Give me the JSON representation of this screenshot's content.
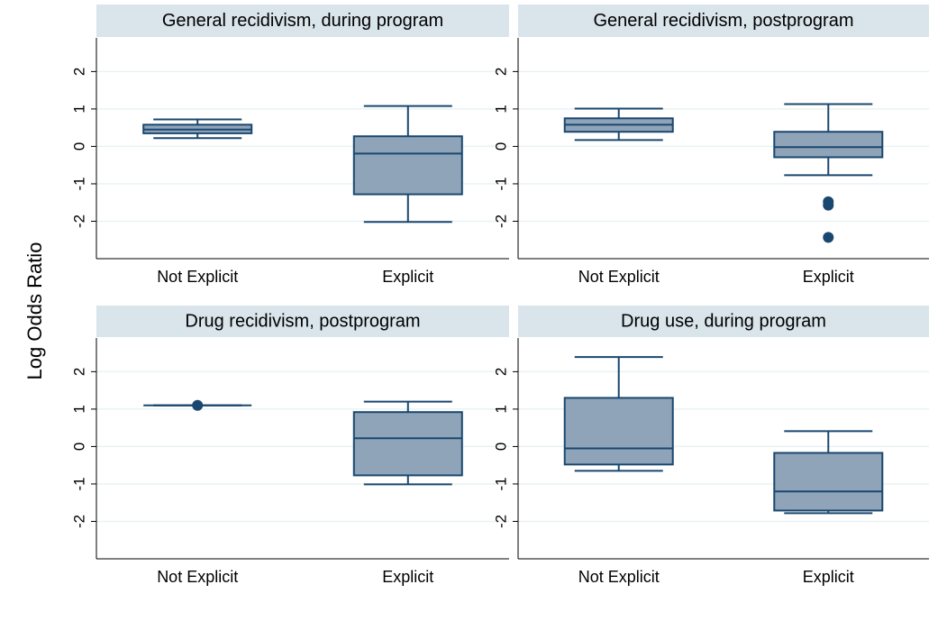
{
  "ylabel": "Log Odds Ratio",
  "chart_data": [
    {
      "type": "box",
      "title": "General recidivism, during program",
      "categories": [
        "Not Explicit",
        "Explicit"
      ],
      "boxes": [
        {
          "whislo": 0.22,
          "q1": 0.35,
          "med": 0.45,
          "q3": 0.58,
          "whishi": 0.72,
          "fliers": []
        },
        {
          "whislo": -2.02,
          "q1": -1.28,
          "med": -0.19,
          "q3": 0.27,
          "whishi": 1.08,
          "fliers": []
        }
      ],
      "ylim": [
        -3.0,
        2.9
      ],
      "yticks": [
        -2,
        -1,
        0,
        1,
        2
      ],
      "grid": true,
      "color": "#8fa4b8",
      "line_color": "#1a476f"
    },
    {
      "type": "box",
      "title": "General recidivism, postprogram",
      "categories": [
        "Not Explicit",
        "Explicit"
      ],
      "boxes": [
        {
          "whislo": 0.17,
          "q1": 0.39,
          "med": 0.58,
          "q3": 0.75,
          "whishi": 1.01,
          "fliers": []
        },
        {
          "whislo": -0.77,
          "q1": -0.29,
          "med": -0.02,
          "q3": 0.39,
          "whishi": 1.13,
          "fliers": [
            -1.48,
            -1.57,
            -2.43
          ]
        }
      ],
      "ylim": [
        -3.0,
        2.9
      ],
      "yticks": [
        -2,
        -1,
        0,
        1,
        2
      ],
      "grid": true,
      "color": "#8fa4b8",
      "line_color": "#1a476f"
    },
    {
      "type": "box",
      "title": "Drug recidivism, postprogram",
      "categories": [
        "Not Explicit",
        "Explicit"
      ],
      "boxes": [
        {
          "whislo": 1.1,
          "q1": 1.1,
          "med": 1.1,
          "q3": 1.1,
          "whishi": 1.1,
          "fliers": [
            1.1
          ]
        },
        {
          "whislo": -1.01,
          "q1": -0.77,
          "med": 0.22,
          "q3": 0.92,
          "whishi": 1.2,
          "fliers": []
        }
      ],
      "ylim": [
        -3.0,
        2.9
      ],
      "yticks": [
        -2,
        -1,
        0,
        1,
        2
      ],
      "grid": true,
      "color": "#8fa4b8",
      "line_color": "#1a476f"
    },
    {
      "type": "box",
      "title": "Drug use, during program",
      "categories": [
        "Not Explicit",
        "Explicit"
      ],
      "boxes": [
        {
          "whislo": -0.65,
          "q1": -0.48,
          "med": -0.05,
          "q3": 1.3,
          "whishi": 2.39,
          "fliers": []
        },
        {
          "whislo": -1.78,
          "q1": -1.71,
          "med": -1.2,
          "q3": -0.17,
          "whishi": 0.41,
          "fliers": []
        }
      ],
      "ylim": [
        -3.0,
        2.9
      ],
      "yticks": [
        -2,
        -1,
        0,
        1,
        2
      ],
      "grid": true,
      "color": "#8fa4b8",
      "line_color": "#1a476f"
    }
  ]
}
